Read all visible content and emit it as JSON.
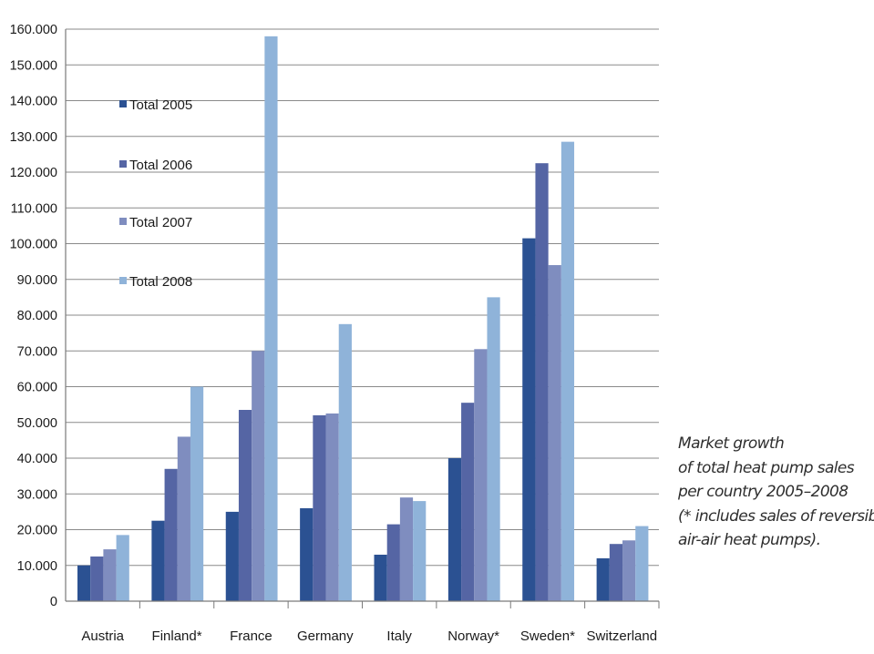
{
  "chart_data": {
    "type": "bar",
    "title": "",
    "xlabel": "",
    "ylabel": "",
    "ylim": [
      0,
      160000
    ],
    "y_ticks": [
      0,
      10000,
      20000,
      30000,
      40000,
      50000,
      60000,
      70000,
      80000,
      90000,
      100000,
      110000,
      120000,
      130000,
      140000,
      150000,
      160000
    ],
    "y_tick_labels": [
      "0",
      "10.000",
      "20.000",
      "30.000",
      "40.000",
      "50.000",
      "60.000",
      "70.000",
      "80.000",
      "90.000",
      "100.000",
      "110.000",
      "120.000",
      "130.000",
      "140.000",
      "150.000",
      "160.000"
    ],
    "grid": true,
    "legend_position": "top-left inside plot",
    "categories": [
      "Austria",
      "Finland*",
      "France",
      "Germany",
      "Italy",
      "Norway*",
      "Sweden*",
      "Switzerland"
    ],
    "series": [
      {
        "name": "Total 2005",
        "color": "#2b5192",
        "values": [
          10000,
          22500,
          25000,
          26000,
          13000,
          40000,
          101500,
          12000
        ]
      },
      {
        "name": "Total 2006",
        "color": "#5565a4",
        "values": [
          12500,
          37000,
          53500,
          52000,
          21500,
          55500,
          122500,
          16000
        ]
      },
      {
        "name": "Total 2007",
        "color": "#7f8dbf",
        "values": [
          14500,
          46000,
          70000,
          52500,
          29000,
          70500,
          94000,
          17000
        ]
      },
      {
        "name": "Total 2008",
        "color": "#8fb3d9",
        "values": [
          18500,
          60000,
          158000,
          77500,
          28000,
          85000,
          128500,
          21000
        ]
      }
    ]
  },
  "caption": {
    "lines": [
      "Market growth",
      "of total heat pump sales",
      "per country 2005–2008",
      "(* includes sales of reversible",
      "air-air heat pumps)."
    ]
  }
}
